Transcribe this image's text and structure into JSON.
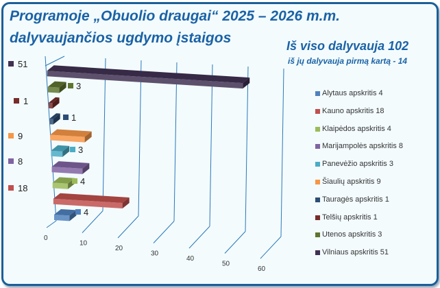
{
  "title_line1": "Programoje „Obuolio draugai“  2025 – 2026 m.m.",
  "title_line2": "dalyvaujančios ugdymo įstaigos",
  "total": "Iš viso dalyvauja 102",
  "first_time": "iš jų dalyvauja pirmą kartą - 14",
  "chart_data": {
    "type": "bar",
    "orientation": "horizontal-3d",
    "categories": [
      "Alytaus apskritis  4",
      "Kauno apskritis 18",
      "Klaipėdos apskritis  4",
      "Marijampolės apskritis 8",
      "Panevėžio apskritis 3",
      "Šiaulių apskritis 9",
      "Tauragės apskritis  1",
      "Telšių apskritis  1",
      "Utenos apskritis 3",
      "Vilniaus apskritis 51"
    ],
    "values": [
      4,
      18,
      4,
      8,
      3,
      9,
      1,
      1,
      3,
      51
    ],
    "value_labels": [
      "4",
      "18",
      "4",
      "8",
      "3",
      "9",
      "1",
      "1",
      "3",
      "51"
    ],
    "colors": [
      "#4f81bd",
      "#c0504d",
      "#9bbb59",
      "#8064a2",
      "#4bacc6",
      "#f79646",
      "#2c4d75",
      "#772c2a",
      "#5f7530",
      "#403152"
    ],
    "x_ticks": [
      "0",
      "10",
      "20",
      "30",
      "40",
      "50",
      "60"
    ],
    "xlim": [
      0,
      60
    ],
    "legend_position": "right",
    "grid": true
  }
}
